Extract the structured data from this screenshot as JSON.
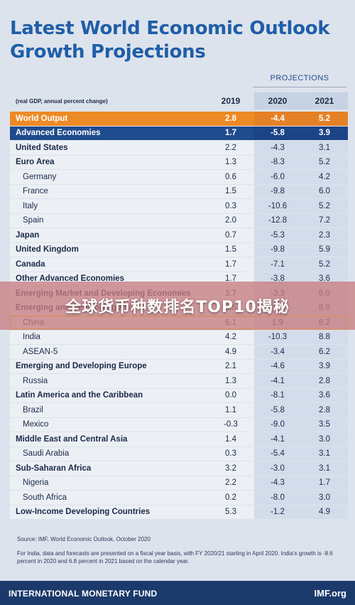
{
  "title_line1": "Latest World Economic Outlook",
  "title_line2": "Growth Projections",
  "projections_label": "PROJECTIONS",
  "header": {
    "label": "(real GDP, annual percent change)",
    "years": [
      "2019",
      "2020",
      "2021"
    ]
  },
  "rows": [
    {
      "label": "World Output",
      "v": [
        "2.8",
        "-4.4",
        "5.2"
      ],
      "style": "world"
    },
    {
      "label": "Advanced Economies",
      "v": [
        "1.7",
        "-5.8",
        "3.9"
      ],
      "style": "adv"
    },
    {
      "label": "United States",
      "v": [
        "2.2",
        "-4.3",
        "3.1"
      ],
      "style": "group"
    },
    {
      "label": "Euro Area",
      "v": [
        "1.3",
        "-8.3",
        "5.2"
      ],
      "style": "group"
    },
    {
      "label": "Germany",
      "v": [
        "0.6",
        "-6.0",
        "4.2"
      ],
      "style": "sub"
    },
    {
      "label": "France",
      "v": [
        "1.5",
        "-9.8",
        "6.0"
      ],
      "style": "sub"
    },
    {
      "label": "Italy",
      "v": [
        "0.3",
        "-10.6",
        "5.2"
      ],
      "style": "sub"
    },
    {
      "label": "Spain",
      "v": [
        "2.0",
        "-12.8",
        "7.2"
      ],
      "style": "sub"
    },
    {
      "label": "Japan",
      "v": [
        "0.7",
        "-5.3",
        "2.3"
      ],
      "style": "group"
    },
    {
      "label": "United Kingdom",
      "v": [
        "1.5",
        "-9.8",
        "5.9"
      ],
      "style": "group"
    },
    {
      "label": "Canada",
      "v": [
        "1.7",
        "-7.1",
        "5.2"
      ],
      "style": "group"
    },
    {
      "label": "Other Advanced Economies",
      "v": [
        "1.7",
        "-3.8",
        "3.6"
      ],
      "style": "group"
    },
    {
      "label": "Emerging Market and Developing Economies",
      "v": [
        "3.7",
        "-3.3",
        "6.0"
      ],
      "style": "group"
    },
    {
      "label": "Emerging and Developing Asia",
      "v": [
        "5.5",
        "1.0",
        "8.0"
      ],
      "style": "group"
    },
    {
      "label": "China",
      "v": [
        "6.1",
        "1.9",
        "8.2"
      ],
      "style": "sub",
      "highlight": true
    },
    {
      "label": "India",
      "v": [
        "4.2",
        "-10.3",
        "8.8"
      ],
      "style": "sub"
    },
    {
      "label": "ASEAN-5",
      "v": [
        "4.9",
        "-3.4",
        "6.2"
      ],
      "style": "sub"
    },
    {
      "label": "Emerging and Developing Europe",
      "v": [
        "2.1",
        "-4.6",
        "3.9"
      ],
      "style": "group"
    },
    {
      "label": "Russia",
      "v": [
        "1.3",
        "-4.1",
        "2.8"
      ],
      "style": "sub"
    },
    {
      "label": "Latin America and the Caribbean",
      "v": [
        "0.0",
        "-8.1",
        "3.6"
      ],
      "style": "group"
    },
    {
      "label": "Brazil",
      "v": [
        "1.1",
        "-5.8",
        "2.8"
      ],
      "style": "sub"
    },
    {
      "label": "Mexico",
      "v": [
        "-0.3",
        "-9.0",
        "3.5"
      ],
      "style": "sub"
    },
    {
      "label": "Middle East and Central Asia",
      "v": [
        "1.4",
        "-4.1",
        "3.0"
      ],
      "style": "group"
    },
    {
      "label": "Saudi Arabia",
      "v": [
        "0.3",
        "-5.4",
        "3.1"
      ],
      "style": "sub"
    },
    {
      "label": "Sub-Saharan Africa",
      "v": [
        "3.2",
        "-3.0",
        "3.1"
      ],
      "style": "group"
    },
    {
      "label": "Nigeria",
      "v": [
        "2.2",
        "-4.3",
        "1.7"
      ],
      "style": "sub"
    },
    {
      "label": "South Africa",
      "v": [
        "0.2",
        "-8.0",
        "3.0"
      ],
      "style": "sub"
    },
    {
      "label": "Low-Income Developing Countries",
      "v": [
        "5.3",
        "-1.2",
        "4.9"
      ],
      "style": "group"
    }
  ],
  "notes": {
    "source": "Source: IMF, World Economic Outlook, October 2020",
    "india_note": "For India, data and forecasts are presented on a fiscal year basis, with FY 2020/21 starting in April 2020. India's growth is -8.6 percent in 2020 and 6.8 percent in 2021 based on the calendar year."
  },
  "footer": {
    "org": "INTERNATIONAL MONETARY FUND",
    "site": "IMF.org"
  },
  "overlay_banner": "全球货币种数排名TOP10揭秘",
  "colors": {
    "title": "#1f5ea8",
    "world_row": "#ec8a25",
    "advanced_row": "#1f4b8f",
    "footer": "#1b3a6b",
    "banner": "#c87d82"
  }
}
